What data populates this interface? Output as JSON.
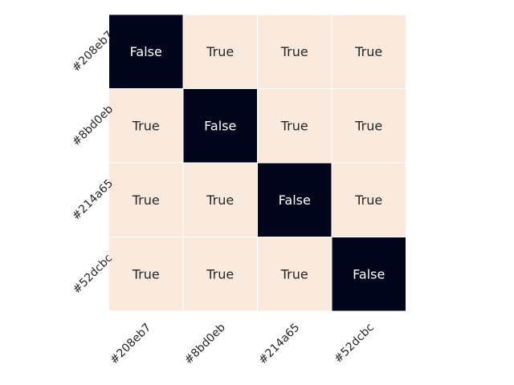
{
  "chart_data": {
    "type": "heatmap",
    "title": "",
    "xlabel": "",
    "ylabel": "",
    "x_categories": [
      "#208eb7",
      "#8bd0eb",
      "#214a65",
      "#52dcbc"
    ],
    "y_categories": [
      "#208eb7",
      "#8bd0eb",
      "#214a65",
      "#52dcbc"
    ],
    "values": [
      [
        "False",
        "True",
        "True",
        "True"
      ],
      [
        "True",
        "False",
        "True",
        "True"
      ],
      [
        "True",
        "True",
        "False",
        "True"
      ],
      [
        "True",
        "True",
        "True",
        "False"
      ]
    ],
    "colors": {
      "True": "#faeade",
      "False": "#03051a",
      "text_on_true": "#262626",
      "text_on_false": "#ffffff",
      "gridline": "#ffffff"
    },
    "colorbar": false,
    "grid": false
  }
}
